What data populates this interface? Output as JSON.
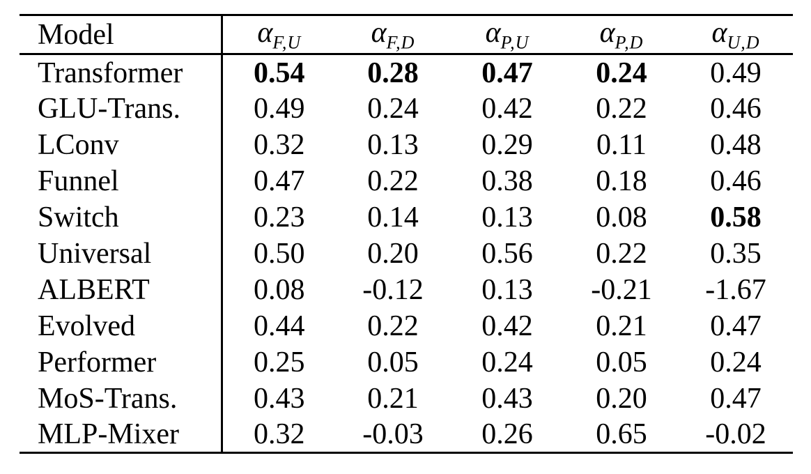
{
  "page": {
    "background_color": "#ffffff",
    "text_color": "#000000",
    "rule_color": "#000000"
  },
  "table": {
    "model_header": "Model",
    "headers": [
      {
        "symbol": "α",
        "subscript": "F,U"
      },
      {
        "symbol": "α",
        "subscript": "F,D"
      },
      {
        "symbol": "α",
        "subscript": "P,U"
      },
      {
        "symbol": "α",
        "subscript": "P,D"
      },
      {
        "symbol": "α",
        "subscript": "U,D"
      }
    ],
    "rows": [
      {
        "model": "Transformer",
        "values": [
          "0.54",
          "0.28",
          "0.47",
          "0.24",
          "0.49"
        ],
        "bold": [
          true,
          true,
          true,
          true,
          false
        ]
      },
      {
        "model": "GLU-Trans.",
        "values": [
          "0.49",
          "0.24",
          "0.42",
          "0.22",
          "0.46"
        ],
        "bold": [
          false,
          false,
          false,
          false,
          false
        ]
      },
      {
        "model": "LConv",
        "values": [
          "0.32",
          "0.13",
          "0.29",
          "0.11",
          "0.48"
        ],
        "bold": [
          false,
          false,
          false,
          false,
          false
        ]
      },
      {
        "model": "Funnel",
        "values": [
          "0.47",
          "0.22",
          "0.38",
          "0.18",
          "0.46"
        ],
        "bold": [
          false,
          false,
          false,
          false,
          false
        ]
      },
      {
        "model": "Switch",
        "values": [
          "0.23",
          "0.14",
          "0.13",
          "0.08",
          "0.58"
        ],
        "bold": [
          false,
          false,
          false,
          false,
          true
        ]
      },
      {
        "model": "Universal",
        "values": [
          "0.50",
          "0.20",
          "0.56",
          "0.22",
          "0.35"
        ],
        "bold": [
          false,
          false,
          false,
          false,
          false
        ]
      },
      {
        "model": "ALBERT",
        "values": [
          "0.08",
          "-0.12",
          "0.13",
          "-0.21",
          "-1.67"
        ],
        "bold": [
          false,
          false,
          false,
          false,
          false
        ]
      },
      {
        "model": "Evolved",
        "values": [
          "0.44",
          "0.22",
          "0.42",
          "0.21",
          "0.47"
        ],
        "bold": [
          false,
          false,
          false,
          false,
          false
        ]
      },
      {
        "model": "Performer",
        "values": [
          "0.25",
          "0.05",
          "0.24",
          "0.05",
          "0.24"
        ],
        "bold": [
          false,
          false,
          false,
          false,
          false
        ]
      },
      {
        "model": "MoS-Trans.",
        "values": [
          "0.43",
          "0.21",
          "0.43",
          "0.20",
          "0.47"
        ],
        "bold": [
          false,
          false,
          false,
          false,
          false
        ]
      },
      {
        "model": "MLP-Mixer",
        "values": [
          "0.32",
          "-0.03",
          "0.26",
          "0.65",
          "-0.02"
        ],
        "bold": [
          false,
          false,
          false,
          false,
          false
        ]
      }
    ]
  },
  "chart_data": {
    "type": "table",
    "title": "",
    "columns": [
      "Model",
      "alpha_F,U",
      "alpha_F,D",
      "alpha_P,U",
      "alpha_P,D",
      "alpha_U,D"
    ],
    "rows": [
      [
        "Transformer",
        0.54,
        0.28,
        0.47,
        0.24,
        0.49
      ],
      [
        "GLU-Trans.",
        0.49,
        0.24,
        0.42,
        0.22,
        0.46
      ],
      [
        "LConv",
        0.32,
        0.13,
        0.29,
        0.11,
        0.48
      ],
      [
        "Funnel",
        0.47,
        0.22,
        0.38,
        0.18,
        0.46
      ],
      [
        "Switch",
        0.23,
        0.14,
        0.13,
        0.08,
        0.58
      ],
      [
        "Universal",
        0.5,
        0.2,
        0.56,
        0.22,
        0.35
      ],
      [
        "ALBERT",
        0.08,
        -0.12,
        0.13,
        -0.21,
        -1.67
      ],
      [
        "Evolved",
        0.44,
        0.22,
        0.42,
        0.21,
        0.47
      ],
      [
        "Performer",
        0.25,
        0.05,
        0.24,
        0.05,
        0.24
      ],
      [
        "MoS-Trans.",
        0.43,
        0.21,
        0.43,
        0.2,
        0.47
      ],
      [
        "MLP-Mixer",
        0.32,
        -0.03,
        0.26,
        0.65,
        -0.02
      ]
    ],
    "bold_cells": [
      [
        "Transformer",
        "alpha_F,U"
      ],
      [
        "Transformer",
        "alpha_F,D"
      ],
      [
        "Transformer",
        "alpha_P,U"
      ],
      [
        "Transformer",
        "alpha_P,D"
      ],
      [
        "Switch",
        "alpha_U,D"
      ]
    ]
  }
}
